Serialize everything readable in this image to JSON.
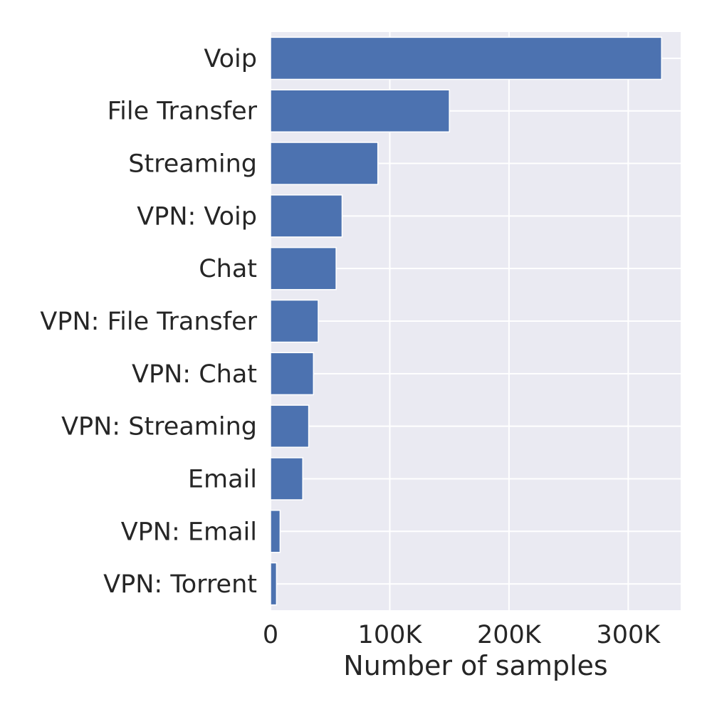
{
  "chart_data": {
    "type": "bar",
    "orientation": "horizontal",
    "title": "",
    "xlabel": "Number of samples",
    "ylabel": "",
    "categories": [
      "Voip",
      "File Transfer",
      "Streaming",
      "VPN: Voip",
      "Chat",
      "VPN: File Transfer",
      "VPN: Chat",
      "VPN: Streaming",
      "Email",
      "VPN: Email",
      "VPN: Torrent"
    ],
    "values": [
      328000,
      150000,
      90000,
      60000,
      55000,
      40000,
      36000,
      32000,
      27000,
      8000,
      5000
    ],
    "xlim": [
      0,
      344000
    ],
    "xticks": [
      0,
      100000,
      200000,
      300000
    ],
    "xtick_labels": [
      "0",
      "100K",
      "200K",
      "300K"
    ],
    "grid": true,
    "legend": "none",
    "colors": {
      "bar": "#4c72b0",
      "plot_background": "#eaeaf2",
      "grid": "#ffffff",
      "text": "#262626"
    }
  }
}
